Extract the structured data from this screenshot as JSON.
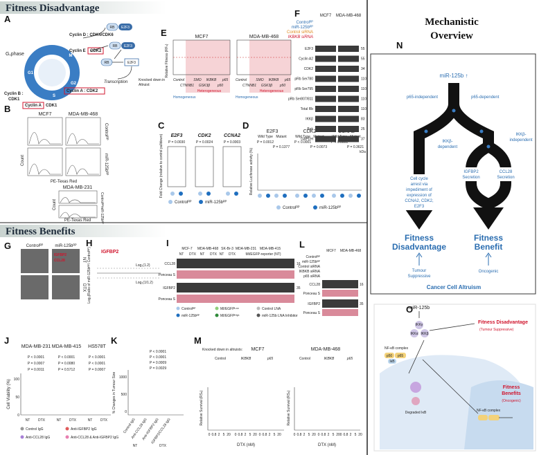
{
  "sections": {
    "fitness_disadvantage": "Fitness Disadvantage",
    "fitness_benefits": "Fitness Benefits",
    "mechanistic_overview": [
      "Mechanistic",
      "Overview"
    ]
  },
  "panels": {
    "A": "A",
    "B": "B",
    "C": "C",
    "D": "D",
    "E": "E",
    "F": "F",
    "G": "G",
    "H": "H",
    "I": "I",
    "J": "J",
    "K": "K",
    "L": "L",
    "M": "M",
    "N": "N",
    "O": "O"
  },
  "panel_a": {
    "g1_phase": "G₁phase",
    "cyclin_d_cdk46": "Cyclin D : CDK4/CDK6",
    "cyclin_e": "Cyclin E",
    "cdk2": "CDK2",
    "cyclin_a_cdk2": "Cyclin A : CDK2",
    "cyclin_b_cdk1": [
      "Cyclin B :",
      "CDK1"
    ],
    "cyclin_a": "Cyclin A",
    "cdk1": "CDK1",
    "rb": "RB",
    "e2f3": "E2F3",
    "transcription": "Transcription",
    "phases": [
      "G1",
      "S",
      "G2",
      "M"
    ]
  },
  "panel_b": {
    "cell_lines": [
      "MCF7",
      "MDA-MB-468",
      "MDA-MB-231"
    ],
    "x_label": "PE-Texas Red",
    "y_label": "Count",
    "conditions": [
      "Controlᴿᴾ",
      "miR-125bᴿᴾ"
    ]
  },
  "panel_c": {
    "genes": [
      "E2F3",
      "CDK2",
      "CCNA2"
    ],
    "p_values": [
      "P = 0.0030",
      "P = 0.0024",
      "P = 0.0003"
    ],
    "y_label": "Fold Change (relative to control pulldown)",
    "legend": [
      "Controlᴿᴾ",
      "miR-125bᴿᴾ"
    ]
  },
  "panel_d": {
    "genes": [
      "E2F3",
      "CDK2",
      "CCNA2"
    ],
    "groups": [
      "Wild Type",
      "Mutant"
    ],
    "p_values": [
      [
        "P = 0.0012",
        "P = 0.1377"
      ],
      [
        "P < 0.0001",
        "P = 0.0073"
      ],
      [
        "P < 0.0001",
        "P = 0.3621"
      ]
    ],
    "y_label": "Relative Luciferase activity (%)",
    "legend": [
      "Controlᴿᴾ",
      "miR-125bᴿᴾ"
    ]
  },
  "panel_e": {
    "cell_lines": [
      "MCF7",
      "MDA-MB-468"
    ],
    "y_label": "Relative Fitness (RFₙ)",
    "knockdown_label": [
      "Knocked down in",
      "Altruist:"
    ],
    "top_genes": [
      "Control",
      "SMO",
      "IKBKB",
      "p65"
    ],
    "bottom_genes": [
      "CTNNB1",
      "GSK3β",
      "p50"
    ],
    "homogeneous": "Homogeneous",
    "heterogeneous": "Heterogeneous"
  },
  "panel_f": {
    "cell_lines": [
      "MCF7",
      "MDA-MB-468"
    ],
    "conditions": [
      "Controlᴿᴾ",
      "miR-125bᴿᴾ",
      "Control siRNA",
      "IKBKB siRNA"
    ],
    "rows": [
      "E2F3",
      "Cyclin A2",
      "CDK2",
      "pRb Ser780",
      "pRb Ser795",
      "pRb Ser807/811",
      "Total Rb",
      "IKKβ",
      "Bak",
      "GAPDH"
    ],
    "kda": [
      "55",
      "55",
      "34",
      "110",
      "110",
      "110",
      "110",
      "83",
      "25",
      "37"
    ],
    "kda_unit": "kDa"
  },
  "panel_g": {
    "conditions": [
      "Controlᴿᴾ",
      "miR-125bᴿᴾ"
    ],
    "treatments": [
      "NT",
      "DTX"
    ],
    "proteins": [
      "IGFBP2",
      "CCL28"
    ]
  },
  "panel_h": {
    "highlight": "IGFBP2",
    "thresholds": [
      "Log₂(1.2)",
      "Log₂(1/1.2)"
    ],
    "y_label": "Log₂(Ratio of miR-125bᴿᴾ/ Controlᴿᴾ)"
  },
  "panel_i": {
    "cell_lines": [
      "MCF-7",
      "MDA-MB-468",
      "SK-Br-3",
      "MDA-MB-231",
      "MDA-MB-415"
    ],
    "treatments": [
      "NT",
      "DTX"
    ],
    "reporter": "MI/EGFP-reporter (NT)",
    "proteins": [
      "CCL28",
      "IGFBP2"
    ],
    "ponceau": "Ponceau S",
    "kda": [
      "16",
      "35"
    ],
    "legend": [
      "Controlᴿᴾ",
      "miR-125bᴿᴾ",
      "MI/EGFPᴸᵒʷ",
      "MI/EGFPᴴⁱᵍʰ",
      "Control LNA",
      "miR-125b LNA Inhibitor"
    ]
  },
  "panel_j": {
    "cell_lines": [
      "MDA-MB-231",
      "MDA-MB-415",
      "HS578T"
    ],
    "p_values": [
      [
        "P < 0.0001",
        "P < 0.0001",
        "P < 0.0001"
      ],
      [
        "P = 0.0007",
        "P = 0.0080",
        "P < 0.0001"
      ],
      [
        "P = 0.0011",
        "P = 0.5712",
        "P = 0.0007"
      ]
    ],
    "y_label": "Cell Viability (%)",
    "yticks": [
      "100",
      "50",
      "0"
    ],
    "treatments": [
      "NT",
      "DTX"
    ],
    "legend": [
      "Control IgG",
      "Anti-IGFBP2 IgG",
      "Anti-CCL28 IgG",
      "Anti-CCL28 & Anti-IGFBP2 IgG"
    ]
  },
  "panel_k": {
    "y_label": "% Changes in Tumour Size",
    "yticks": [
      "1000",
      "500",
      "0"
    ],
    "p_values": [
      "P < 0.0001",
      "P < 0.0001",
      "P = 0.0009",
      "P = 0.0029"
    ],
    "groups": [
      "Control IgG",
      "Anti-CCL28 IgG",
      "Anti-IGFBP2 IgG",
      "IGFBP2/CCL28 IgG"
    ],
    "treatments": [
      "NT",
      "DTX"
    ]
  },
  "panel_l": {
    "cell_lines": [
      "MCF7",
      "MDA-MB-468"
    ],
    "conditions": [
      "Controlᴿᴾ",
      "miR-125bᴿᴾ",
      "Control siRNA",
      "IKBKB siRNA",
      "p65 siRNA"
    ],
    "proteins": [
      "CCL28",
      "IGFBP2"
    ],
    "ponceau": "Ponceau S",
    "kda": [
      "16",
      "35"
    ]
  },
  "panel_m": {
    "knockdown_label": "Knocked down in altruists:",
    "cell_lines": [
      "MCF7",
      "MDA-MB-468"
    ],
    "groups": [
      "Control",
      "IKBKB",
      "p65"
    ],
    "y_label": "Relative Survival (RSₙ)",
    "x_label": "DTX (nM)",
    "doses": [
      "0",
      "0.8",
      "2",
      "5",
      "20"
    ]
  },
  "panel_n": {
    "mirna": "miR-125b ↑",
    "p65_independent": "p65-independent",
    "p65_dependent": "p65-dependent",
    "ikkb_dependent": [
      "IKKβ-",
      "dependent"
    ],
    "ikkb_independent": [
      "IKKβ-",
      "independent"
    ],
    "cell_cycle": [
      "Cell cycle",
      "arrest via",
      "impediment of",
      "expression of",
      "CCNA2, CDK2,",
      "E2F3"
    ],
    "igfbp2": [
      "IGFBP2",
      "Secretion"
    ],
    "ccl28": [
      "CCL28",
      "Secretion"
    ],
    "fitness_disadvantage": [
      "Fitness",
      "Disadvantage"
    ],
    "fitness_benefit": [
      "Fitness",
      "Benefit"
    ],
    "tumour_suppressive": [
      "Tumour",
      "Suppressive"
    ],
    "oncogenic": "Oncogenic",
    "altruism": "Cancer Cell Altruism"
  },
  "panel_o": {
    "mirna": "miR-125b",
    "ikk": [
      "IKKγ",
      "IKKα",
      "IKKβ"
    ],
    "fitness_disadvantage": "Fitness Disadvantage",
    "tumour_suppressive": "(Tumour Suppressive)",
    "nfkb": "NF-κB complex",
    "proteins": [
      "p50",
      "p65",
      "IκB"
    ],
    "degraded": "Degraded IκB",
    "fitness_benefits": [
      "Fitness",
      "Benefits"
    ],
    "oncogenic": "(Oncogenic)"
  }
}
